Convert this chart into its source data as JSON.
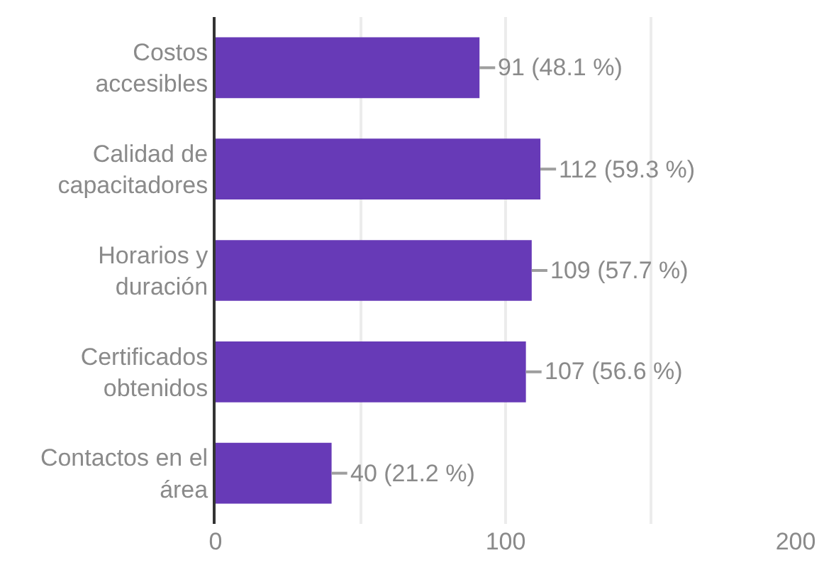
{
  "chart_data": {
    "type": "bar",
    "orientation": "horizontal",
    "categories": [
      "Costos accesibles",
      "Calidad de capacitadores",
      "Horarios y duración",
      "Certificados obtenidos",
      "Contactos en el área"
    ],
    "values": [
      91,
      112,
      109,
      107,
      40
    ],
    "value_labels": [
      "91 (48.1 %)",
      "112 (59.3 %)",
      "109 (57.7 %)",
      "107 (56.6 %)",
      "40 (21.2 %)"
    ],
    "color": "#673ab7",
    "xlim": [
      0,
      200
    ],
    "xticks": [
      0,
      {
        "value": 50,
        "label": null
      },
      100,
      {
        "value": 150,
        "label": null
      },
      200
    ],
    "grid": "x"
  }
}
